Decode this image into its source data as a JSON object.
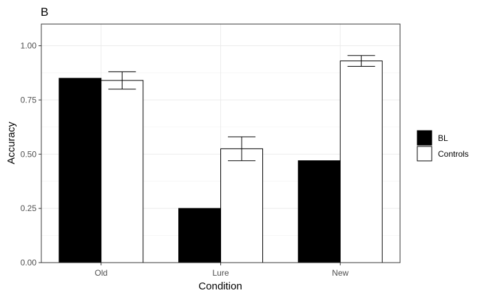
{
  "chart_data": {
    "type": "bar",
    "panel_tag": "B",
    "xlabel": "Condition",
    "ylabel": "Accuracy",
    "categories": [
      "Old",
      "Lure",
      "New"
    ],
    "ylim": [
      0,
      1.1
    ],
    "yticks": [
      0,
      0.25,
      0.5,
      0.75,
      1.0
    ],
    "ytick_labels": [
      "0.00",
      "0.25",
      "0.50",
      "0.75",
      "1.00"
    ],
    "grid": true,
    "legend_position": "right",
    "series": [
      {
        "name": "BL",
        "color": "#000000",
        "values": [
          0.85,
          0.25,
          0.47
        ]
      },
      {
        "name": "Controls",
        "color": "#ffffff",
        "values": [
          0.84,
          0.525,
          0.93
        ],
        "error_low": [
          0.8,
          0.47,
          0.905
        ],
        "error_high": [
          0.88,
          0.58,
          0.955
        ]
      }
    ]
  }
}
